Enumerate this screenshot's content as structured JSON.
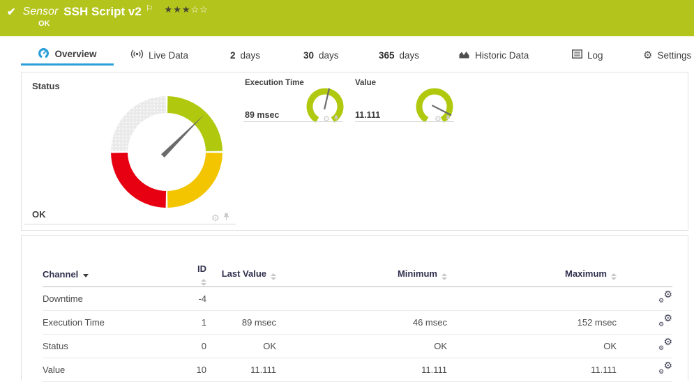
{
  "colors": {
    "topbar_green": "#b3c41c",
    "tab_accent_blue": "#2b9fd8",
    "gauge_green": "#b0c90f",
    "gauge_yellow": "#f2c500",
    "gauge_red": "#e60012",
    "gauge_gray": "#eaeaea",
    "needle_gray": "#6b6b6b"
  },
  "header": {
    "type_label": "Sensor",
    "title": "SSH Script v2",
    "status": "OK",
    "rating_filled": "★★★",
    "rating_empty": "☆☆"
  },
  "tabs": {
    "overview": "Overview",
    "live_data": "Live Data",
    "d2_num": "2",
    "d2_label": "days",
    "d30_num": "30",
    "d30_label": "days",
    "d365_num": "365",
    "d365_label": "days",
    "historic": "Historic Data",
    "log": "Log",
    "settings": "Settings"
  },
  "status_panel": {
    "title": "Status",
    "value": "OK",
    "needle_angle_deg": 45,
    "segments": [
      {
        "name": "up",
        "color": "#b0c90f"
      },
      {
        "name": "warning",
        "color": "#f2c500"
      },
      {
        "name": "down",
        "color": "#e60012"
      },
      {
        "name": "unknown",
        "color": "#eaeaea"
      }
    ]
  },
  "gauges": [
    {
      "title": "Execution Time",
      "value": "89 msec",
      "needle_angle_deg": 13
    },
    {
      "title": "Value",
      "value": "11.111",
      "needle_angle_deg": 117
    }
  ],
  "table": {
    "headers": {
      "channel": "Channel",
      "id": "ID",
      "last_value": "Last Value",
      "minimum": "Minimum",
      "maximum": "Maximum"
    },
    "rows": [
      {
        "channel": "Downtime",
        "id": "-4",
        "last_value": "",
        "minimum": "",
        "maximum": ""
      },
      {
        "channel": "Execution Time",
        "id": "1",
        "last_value": "89 msec",
        "minimum": "46 msec",
        "maximum": "152 msec"
      },
      {
        "channel": "Status",
        "id": "0",
        "last_value": "OK",
        "minimum": "OK",
        "maximum": "OK"
      },
      {
        "channel": "Value",
        "id": "10",
        "last_value": "11.111",
        "minimum": "11.111",
        "maximum": "11.111"
      }
    ]
  }
}
